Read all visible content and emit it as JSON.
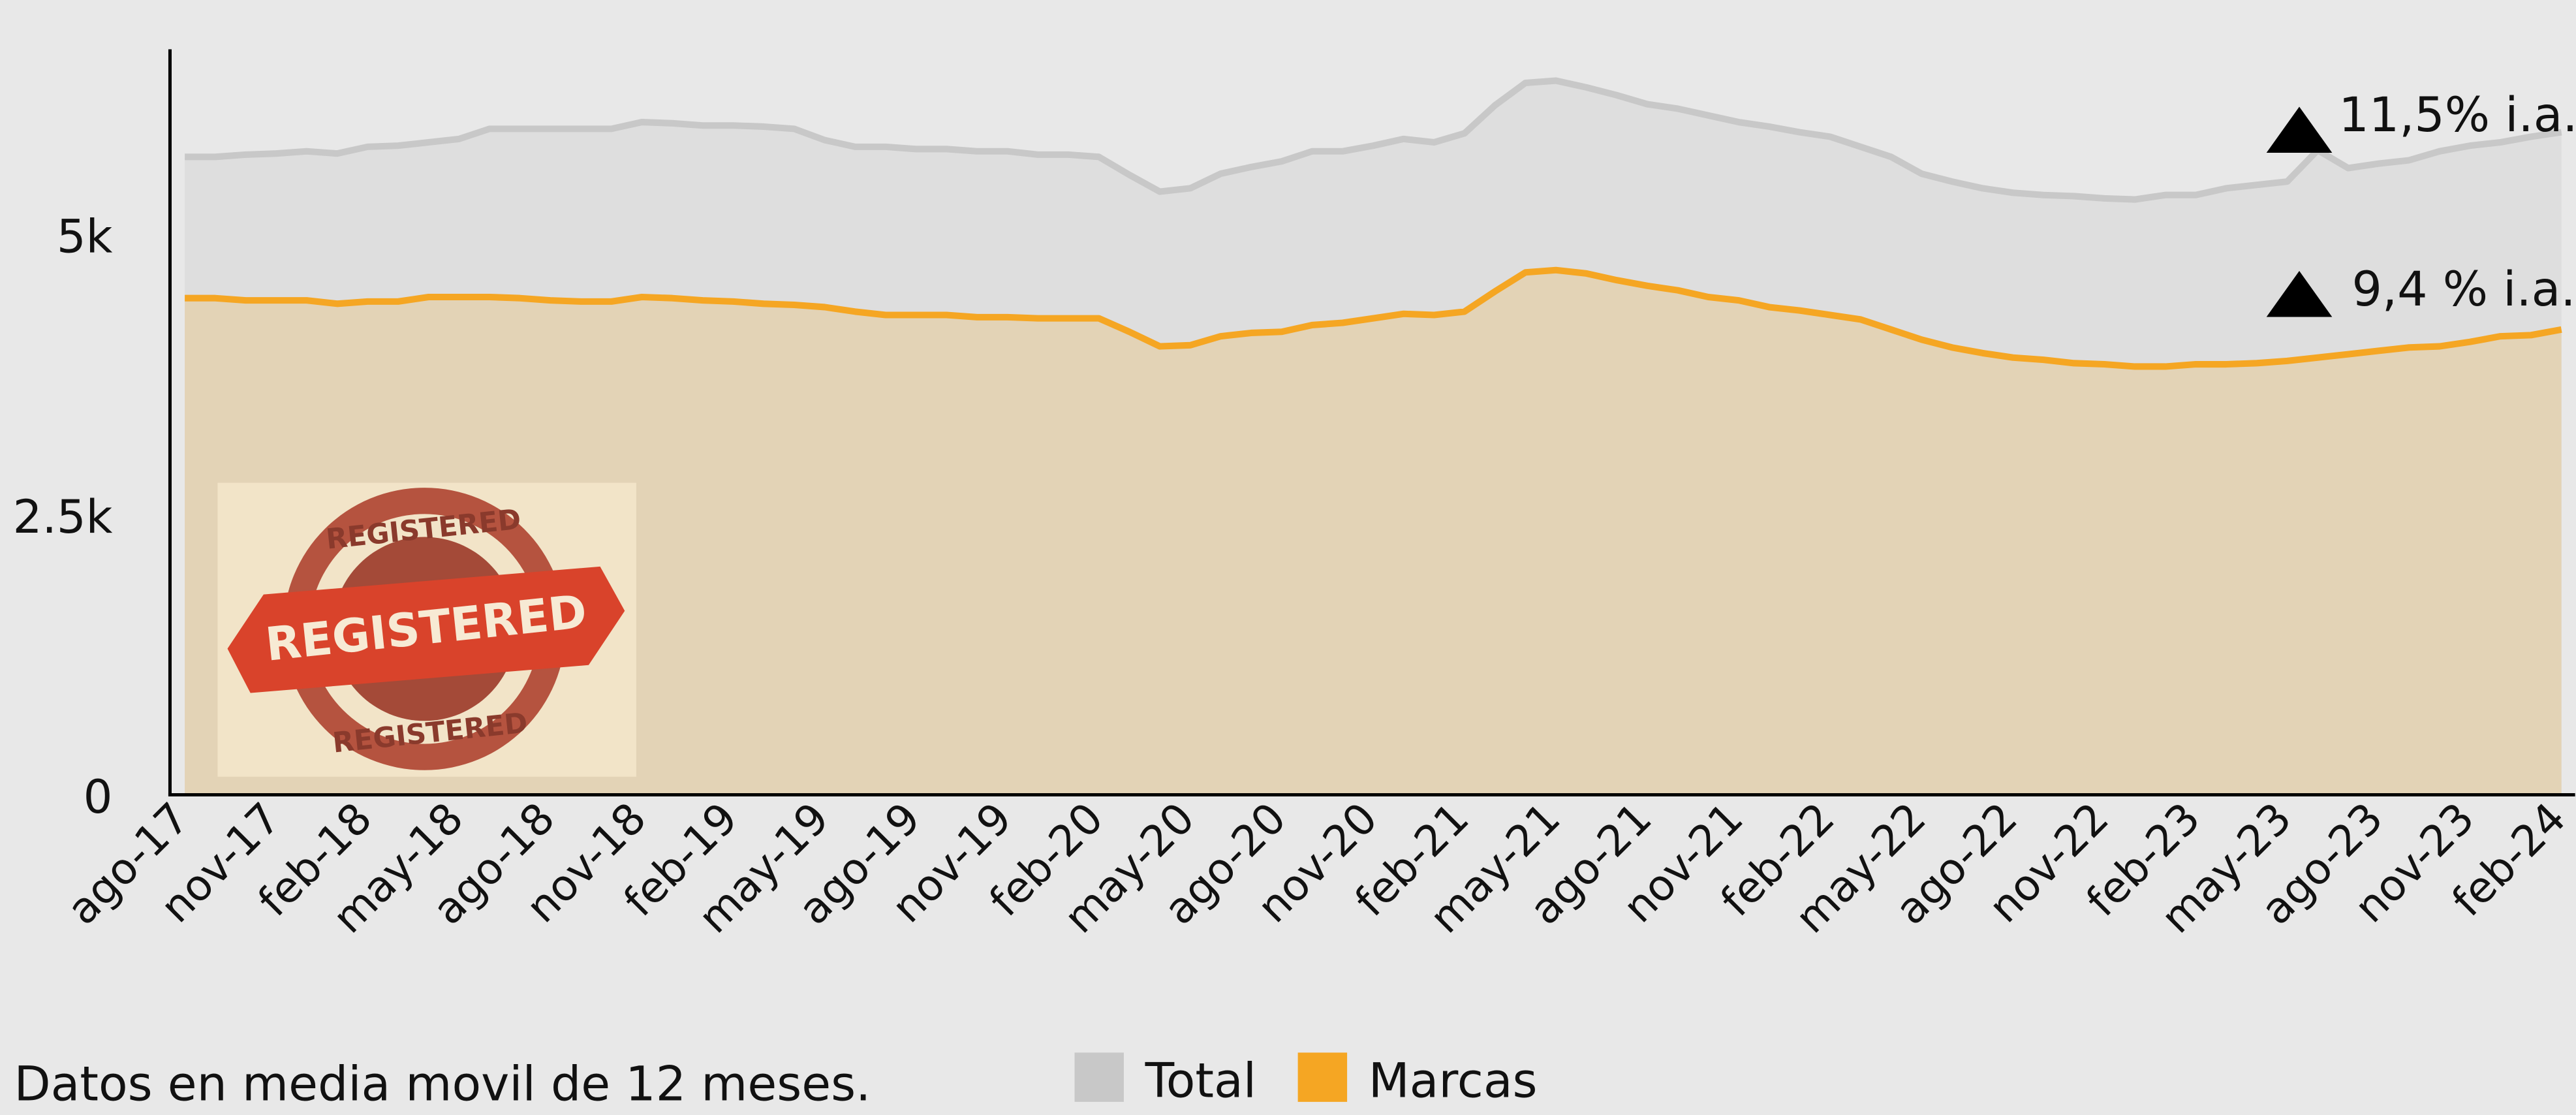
{
  "chart_data": {
    "type": "area",
    "categories": [
      "ago-17",
      null,
      null,
      "nov-17",
      null,
      null,
      "feb-18",
      null,
      null,
      "may-18",
      null,
      null,
      "ago-18",
      null,
      null,
      "nov-18",
      null,
      null,
      "feb-19",
      null,
      null,
      "may-19",
      null,
      null,
      "ago-19",
      null,
      null,
      "nov-19",
      null,
      null,
      "feb-20",
      null,
      null,
      "may-20",
      null,
      null,
      "ago-20",
      null,
      null,
      "nov-20",
      null,
      null,
      "feb-21",
      null,
      null,
      "may-21",
      null,
      null,
      "ago-21",
      null,
      null,
      "nov-21",
      null,
      null,
      "feb-22",
      null,
      null,
      "may-22",
      null,
      null,
      "ago-22",
      null,
      null,
      "nov-22",
      null,
      null,
      "feb-23",
      null,
      null,
      "may-23",
      null,
      null,
      "ago-23",
      null,
      null,
      "nov-23",
      null,
      null,
      "feb-24"
    ],
    "series": [
      {
        "name": "Total",
        "color": "#c8c8c8",
        "fill": "#dedede",
        "values": [
          5690,
          5690,
          5710,
          5720,
          5740,
          5720,
          5780,
          5790,
          5820,
          5850,
          5940,
          5940,
          5940,
          5940,
          5940,
          6000,
          5990,
          5970,
          5970,
          5960,
          5940,
          5840,
          5780,
          5780,
          5760,
          5760,
          5740,
          5740,
          5710,
          5710,
          5690,
          5530,
          5380,
          5410,
          5540,
          5600,
          5650,
          5740,
          5740,
          5790,
          5850,
          5820,
          5900,
          6150,
          6350,
          6370,
          6310,
          6240,
          6160,
          6120,
          6060,
          6000,
          5960,
          5910,
          5870,
          5780,
          5690,
          5540,
          5470,
          5410,
          5370,
          5350,
          5340,
          5320,
          5310,
          5350,
          5350,
          5410,
          5440,
          5470,
          5750,
          5590,
          5630,
          5660,
          5740,
          5790,
          5820,
          5870,
          5910
        ]
      },
      {
        "name": "Marcas",
        "color": "#f5a623",
        "fill": "#e3d3b6",
        "values": [
          4430,
          4430,
          4410,
          4410,
          4410,
          4380,
          4400,
          4400,
          4440,
          4440,
          4440,
          4430,
          4410,
          4400,
          4400,
          4440,
          4430,
          4410,
          4400,
          4380,
          4370,
          4350,
          4310,
          4280,
          4280,
          4280,
          4260,
          4260,
          4250,
          4250,
          4250,
          4130,
          4000,
          4010,
          4090,
          4120,
          4130,
          4190,
          4210,
          4250,
          4290,
          4280,
          4310,
          4490,
          4660,
          4680,
          4650,
          4590,
          4540,
          4500,
          4440,
          4410,
          4350,
          4320,
          4280,
          4240,
          4150,
          4060,
          3990,
          3940,
          3900,
          3880,
          3850,
          3840,
          3820,
          3820,
          3840,
          3840,
          3850,
          3870,
          3900,
          3930,
          3960,
          3990,
          4000,
          4040,
          4090,
          4100,
          4150
        ]
      }
    ],
    "ylim": [
      0,
      6650
    ],
    "yticks": [
      0,
      {
        "value": 2500,
        "label": "2.5k"
      },
      {
        "value": 5000,
        "label": "5k"
      }
    ],
    "annotations": [
      "11,5% i.a.",
      "9,4 % i.a."
    ],
    "note": "Datos en media movil de 12 meses.",
    "stamp_text": [
      "REGISTERED",
      "REGISTERED",
      "REGISTERED"
    ]
  }
}
